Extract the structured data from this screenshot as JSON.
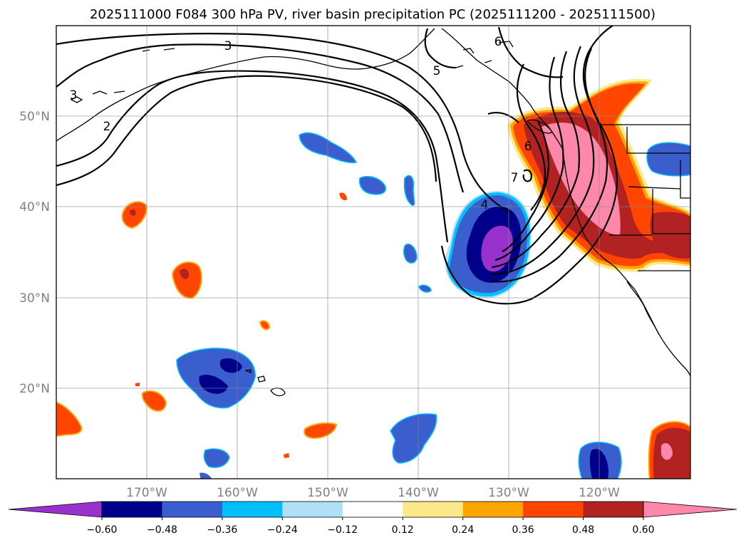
{
  "map": {
    "title": "2025111000 F084 300 hPa PV, river basin precipitation PC (2025111200 - 2025111500)",
    "lat_labels": [
      "50°N",
      "40°N",
      "30°N",
      "20°N"
    ],
    "lon_labels": [
      "170°W",
      "160°W",
      "150°W",
      "140°W",
      "130°W",
      "120°W"
    ],
    "extent": {
      "lon_min": -180,
      "lon_max": -110,
      "lat_min": 10,
      "lat_max": 60
    },
    "contour_labels": [
      "3",
      "3",
      "2",
      "5",
      "6",
      "6",
      "7",
      "4"
    ],
    "features": [
      "North Pacific Ocean",
      "North America west coast",
      "Alaska",
      "Hawaii",
      "US state boundaries"
    ]
  },
  "colorbar": {
    "tick_labels": [
      "−0.60",
      "−0.48",
      "−0.36",
      "−0.24",
      "−0.12",
      "0.12",
      "0.24",
      "0.36",
      "0.48",
      "0.60"
    ],
    "levels": [
      -0.6,
      -0.48,
      -0.36,
      -0.24,
      -0.12,
      0.12,
      0.24,
      0.36,
      0.48,
      0.6
    ],
    "colors": [
      "#9932cc",
      "#00008b",
      "#3a5ecd",
      "#00bfff",
      "#b0e0f8",
      "#ffffff",
      "#fde98c",
      "#ffa500",
      "#ff4500",
      "#b22222",
      "#ff88aa"
    ],
    "extend": "both"
  }
}
